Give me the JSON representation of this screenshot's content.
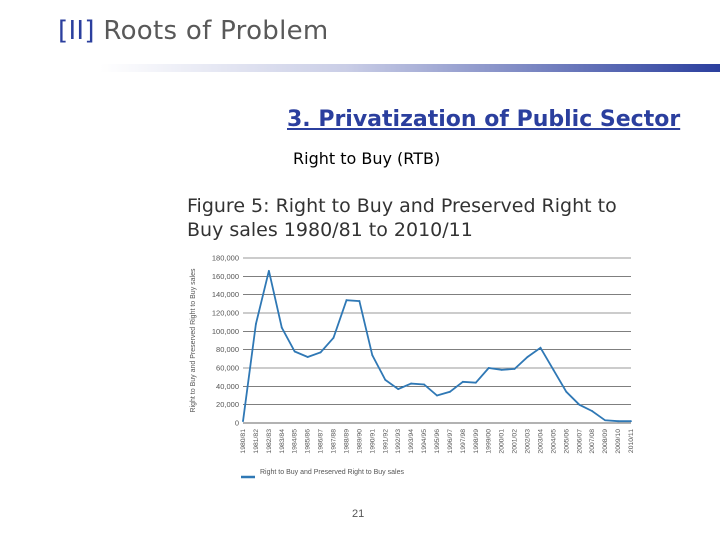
{
  "header": {
    "number": "[II]",
    "title": "Roots of Problem"
  },
  "subtitle": "3. Privatization of Public Sector",
  "rtb_label": "Right to Buy (RTB)",
  "figure": {
    "title": "Figure 5: Right to Buy and Preserved Right to Buy sales 1980/81 to 2010/11"
  },
  "colors": {
    "accent": "#2b3f9e",
    "line": "#2f78b5",
    "text": "#595959"
  },
  "chart_data": {
    "type": "line",
    "title": "Figure 5: Right to Buy and Preserved Right to Buy sales 1980/81 to 2010/11",
    "xlabel": "",
    "ylabel": "Right to Buy and Preserved Right to Buy sales",
    "ylim": [
      0,
      180000
    ],
    "yticks": [
      "0",
      "20,000",
      "40,000",
      "60,000",
      "80,000",
      "100,000",
      "120,000",
      "140,000",
      "160,000",
      "180,000"
    ],
    "grid": true,
    "legend": "bottom",
    "categories": [
      "1980/81",
      "1981/82",
      "1982/83",
      "1983/84",
      "1984/85",
      "1985/86",
      "1986/87",
      "1987/88",
      "1988/89",
      "1989/90",
      "1990/91",
      "1991/92",
      "1992/93",
      "1993/94",
      "1994/95",
      "1995/96",
      "1996/97",
      "1997/98",
      "1998/99",
      "1999/00",
      "2000/01",
      "2001/02",
      "2002/03",
      "2003/04",
      "2004/05",
      "2005/06",
      "2006/07",
      "2007/08",
      "2008/09",
      "2009/10",
      "2010/11"
    ],
    "series": [
      {
        "name": "Right to Buy and Preserved Right to Buy sales",
        "values": [
          2000,
          108000,
          166000,
          104000,
          78000,
          72000,
          77000,
          93000,
          134000,
          133000,
          74000,
          47000,
          37000,
          43000,
          42000,
          30000,
          34000,
          45000,
          44000,
          60000,
          58000,
          59000,
          72000,
          82000,
          58000,
          34000,
          20000,
          13000,
          3000,
          2000,
          2000
        ]
      }
    ]
  },
  "page_number": "21"
}
